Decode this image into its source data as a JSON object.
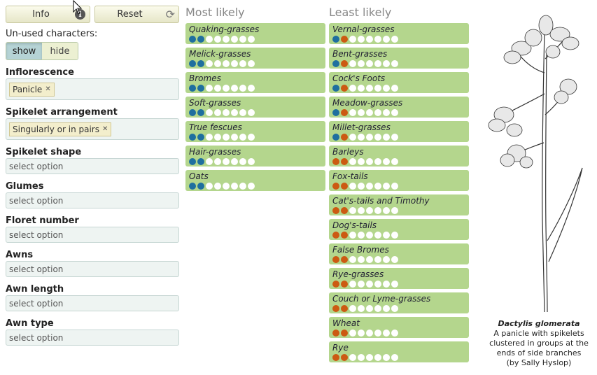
{
  "left": {
    "info_label": "Info",
    "reset_label": "Reset",
    "info_icon": "i",
    "unused_label": "Un-used characters:",
    "show_label": "show",
    "hide_label": "hide",
    "fields": {
      "inflorescence": {
        "label": "Inflorescence",
        "chip": "Panicle"
      },
      "spikelet_arrangement": {
        "label": "Spikelet arrangement",
        "chip": "Singularly or in pairs"
      },
      "spikelet_shape": {
        "label": "Spikelet shape",
        "placeholder": "select option"
      },
      "glumes": {
        "label": "Glumes",
        "placeholder": "select option"
      },
      "floret_number": {
        "label": "Floret number",
        "placeholder": "select option"
      },
      "awns": {
        "label": "Awns",
        "placeholder": "select option"
      },
      "awn_length": {
        "label": "Awn length",
        "placeholder": "select option"
      },
      "awn_type": {
        "label": "Awn type",
        "placeholder": "select option"
      }
    }
  },
  "colors": {
    "blue": "#1f6f9f",
    "orange": "#cc5a12",
    "white": "#ffffff",
    "item_bg": "#b4d68d"
  },
  "most_likely": {
    "title": "Most likely",
    "items": [
      {
        "name": "Quaking-grasses",
        "dots": [
          "blue",
          "blue",
          "white",
          "white",
          "white",
          "white",
          "white",
          "white"
        ]
      },
      {
        "name": "Melick-grasses",
        "dots": [
          "blue",
          "blue",
          "white",
          "white",
          "white",
          "white",
          "white",
          "white"
        ]
      },
      {
        "name": "Bromes",
        "dots": [
          "blue",
          "blue",
          "white",
          "white",
          "white",
          "white",
          "white",
          "white"
        ]
      },
      {
        "name": "Soft-grasses",
        "dots": [
          "blue",
          "blue",
          "white",
          "white",
          "white",
          "white",
          "white",
          "white"
        ]
      },
      {
        "name": "True fescues",
        "dots": [
          "blue",
          "blue",
          "white",
          "white",
          "white",
          "white",
          "white",
          "white"
        ]
      },
      {
        "name": "Hair-grasses",
        "dots": [
          "blue",
          "blue",
          "white",
          "white",
          "white",
          "white",
          "white",
          "white"
        ]
      },
      {
        "name": "Oats",
        "dots": [
          "blue",
          "blue",
          "white",
          "white",
          "white",
          "white",
          "white",
          "white"
        ]
      }
    ]
  },
  "least_likely": {
    "title": "Least likely",
    "items": [
      {
        "name": "Vernal-grasses",
        "dots": [
          "blue",
          "orange",
          "white",
          "white",
          "white",
          "white",
          "white",
          "white"
        ]
      },
      {
        "name": "Bent-grasses",
        "dots": [
          "blue",
          "orange",
          "white",
          "white",
          "white",
          "white",
          "white",
          "white"
        ]
      },
      {
        "name": "Cock's Foots",
        "dots": [
          "blue",
          "orange",
          "white",
          "white",
          "white",
          "white",
          "white",
          "white"
        ]
      },
      {
        "name": "Meadow-grasses",
        "dots": [
          "blue",
          "orange",
          "white",
          "white",
          "white",
          "white",
          "white",
          "white"
        ]
      },
      {
        "name": "Millet-grasses",
        "dots": [
          "blue",
          "orange",
          "white",
          "white",
          "white",
          "white",
          "white",
          "white"
        ]
      },
      {
        "name": "Barleys",
        "dots": [
          "orange",
          "orange",
          "white",
          "white",
          "white",
          "white",
          "white",
          "white"
        ]
      },
      {
        "name": "Fox-tails",
        "dots": [
          "orange",
          "orange",
          "white",
          "white",
          "white",
          "white",
          "white",
          "white"
        ]
      },
      {
        "name": "Cat's-tails and Timothy",
        "dots": [
          "orange",
          "orange",
          "white",
          "white",
          "white",
          "white",
          "white",
          "white"
        ]
      },
      {
        "name": "Dog's-tails",
        "dots": [
          "orange",
          "orange",
          "white",
          "white",
          "white",
          "white",
          "white",
          "white"
        ]
      },
      {
        "name": "False Bromes",
        "dots": [
          "orange",
          "orange",
          "white",
          "white",
          "white",
          "white",
          "white",
          "white"
        ]
      },
      {
        "name": "Rye-grasses",
        "dots": [
          "orange",
          "orange",
          "white",
          "white",
          "white",
          "white",
          "white",
          "white"
        ]
      },
      {
        "name": "Couch or Lyme-grasses",
        "dots": [
          "orange",
          "orange",
          "white",
          "white",
          "white",
          "white",
          "white",
          "white"
        ]
      },
      {
        "name": "Wheat",
        "dots": [
          "orange",
          "orange",
          "white",
          "white",
          "white",
          "white",
          "white",
          "white"
        ]
      },
      {
        "name": "Rye",
        "dots": [
          "orange",
          "orange",
          "white",
          "white",
          "white",
          "white",
          "white",
          "white"
        ]
      }
    ]
  },
  "caption": {
    "species": "Dactylis glomerata",
    "line1": "A panicle with spikelets",
    "line2": "clustered in groups at the",
    "line3": "ends of side branches",
    "line4": "(by Sally Hyslop)"
  }
}
